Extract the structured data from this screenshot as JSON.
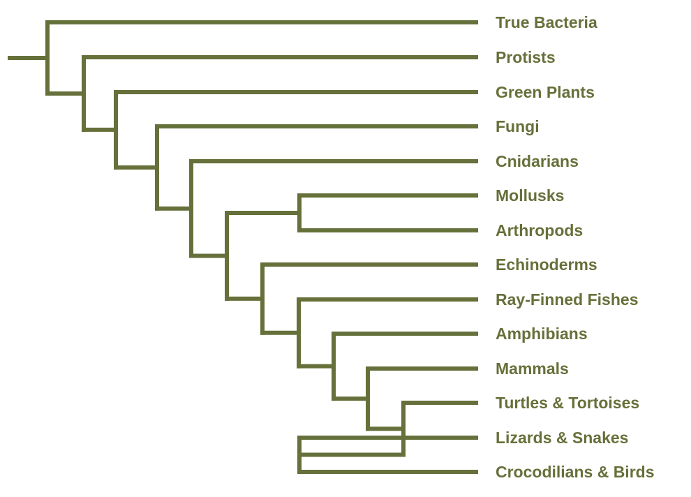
{
  "colors": {
    "branch": "#66703a",
    "label": "#66703a",
    "background": "#ffffff"
  },
  "tree": {
    "title": "",
    "taxa": [
      "True Bacteria",
      "Protists",
      "Green Plants",
      "Fungi",
      "Cnidarians",
      "Mollusks",
      "Arthropods",
      "Echinoderms",
      "Ray-Finned Fishes",
      "Amphibians",
      "Mammals",
      "Turtles & Tortoises",
      "Lizards & Snakes",
      "Crocodilians & Birds"
    ],
    "newick": "(True Bacteria,(Protists,(Green Plants,(Fungi,(Cnidarians,((Mollusks,Arthropods),(Echinoderms,(Ray-Finned Fishes,(Amphibians,(Mammals,(Turtles & Tortoises,(Lizards & Snakes,Crocodilians & Birds)))))))))))))"
  }
}
